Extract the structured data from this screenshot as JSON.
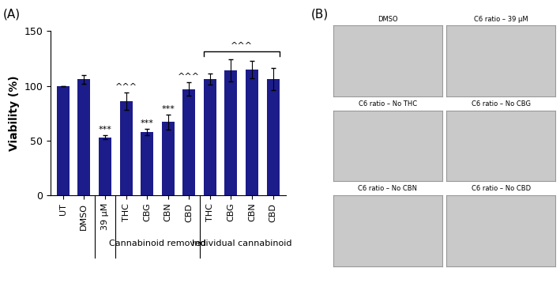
{
  "panel_labels": [
    "(A)",
    "(B)"
  ],
  "chart_data": {
    "type": "bar",
    "ylabel": "Viability (%)",
    "categories": [
      "UT",
      "DMSO",
      "39 µM",
      "THC",
      "CBG",
      "CBN",
      "CBD",
      "THC",
      "CBG",
      "CBN",
      "CBD"
    ],
    "values": [
      100,
      106,
      53,
      86,
      58,
      67,
      97,
      106,
      114,
      115,
      106
    ],
    "errors": [
      0,
      4,
      2,
      8,
      3,
      7,
      6,
      5,
      10,
      8,
      10
    ],
    "significance": [
      null,
      null,
      "***",
      "^^^",
      "***",
      "***",
      "^^^",
      null,
      null,
      null,
      null
    ],
    "groups": [
      {
        "start": 0,
        "end": 1
      },
      {
        "start": 2,
        "end": 2
      },
      {
        "label": "Cannabinoid removed",
        "start": 3,
        "end": 6
      },
      {
        "label": "Individual cannabinoid",
        "start": 7,
        "end": 10
      }
    ],
    "brackets": [
      {
        "text": "^^^",
        "start": 7,
        "end": 10
      }
    ],
    "color": "#1c1c8a",
    "ylim": [
      0,
      150
    ],
    "yticks": [
      0,
      50,
      100,
      150
    ],
    "grid": false
  },
  "images": {
    "titles": [
      "DMSO",
      "C6 ratio – 39 µM",
      "C6 ratio – No THC",
      "C6 ratio – No CBG",
      "C6 ratio – No CBN",
      "C6 ratio – No CBD"
    ]
  }
}
